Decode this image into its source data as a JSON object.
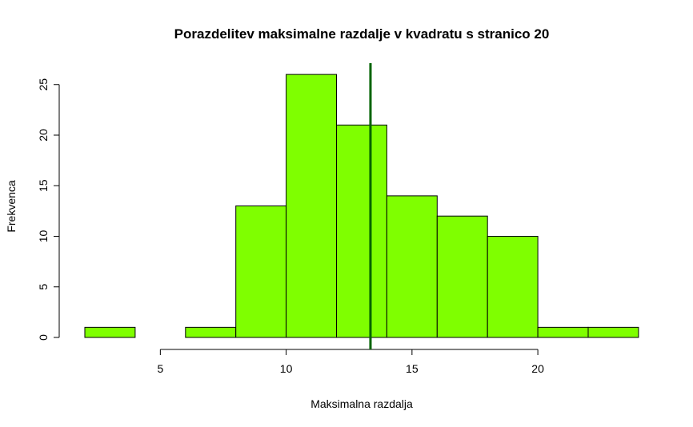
{
  "chart_data": {
    "type": "bar",
    "subtype": "histogram",
    "title": "Porazdelitev maksimalne razdalje v kvadratu s stranico 20",
    "xlabel": "Maksimalna razdalja",
    "ylabel": "Frekvenca",
    "bins": [
      {
        "from": 2,
        "to": 4,
        "count": 1
      },
      {
        "from": 4,
        "to": 6,
        "count": 0
      },
      {
        "from": 6,
        "to": 8,
        "count": 1
      },
      {
        "from": 8,
        "to": 10,
        "count": 13
      },
      {
        "from": 10,
        "to": 12,
        "count": 26
      },
      {
        "from": 12,
        "to": 14,
        "count": 21
      },
      {
        "from": 14,
        "to": 16,
        "count": 14
      },
      {
        "from": 16,
        "to": 18,
        "count": 12
      },
      {
        "from": 18,
        "to": 20,
        "count": 10
      },
      {
        "from": 20,
        "to": 22,
        "count": 1
      },
      {
        "from": 22,
        "to": 24,
        "count": 1
      }
    ],
    "mean_line": 13.35,
    "xticks": [
      "5",
      "10",
      "15",
      "20"
    ],
    "yticks": [
      "0",
      "5",
      "10",
      "15",
      "20",
      "25"
    ],
    "xlim": [
      2,
      24
    ],
    "ylim": [
      0,
      26
    ],
    "grid": false,
    "colors": {
      "bar_fill": "#7fff00",
      "bar_stroke": "#000000",
      "mean_line": "#006400"
    }
  }
}
